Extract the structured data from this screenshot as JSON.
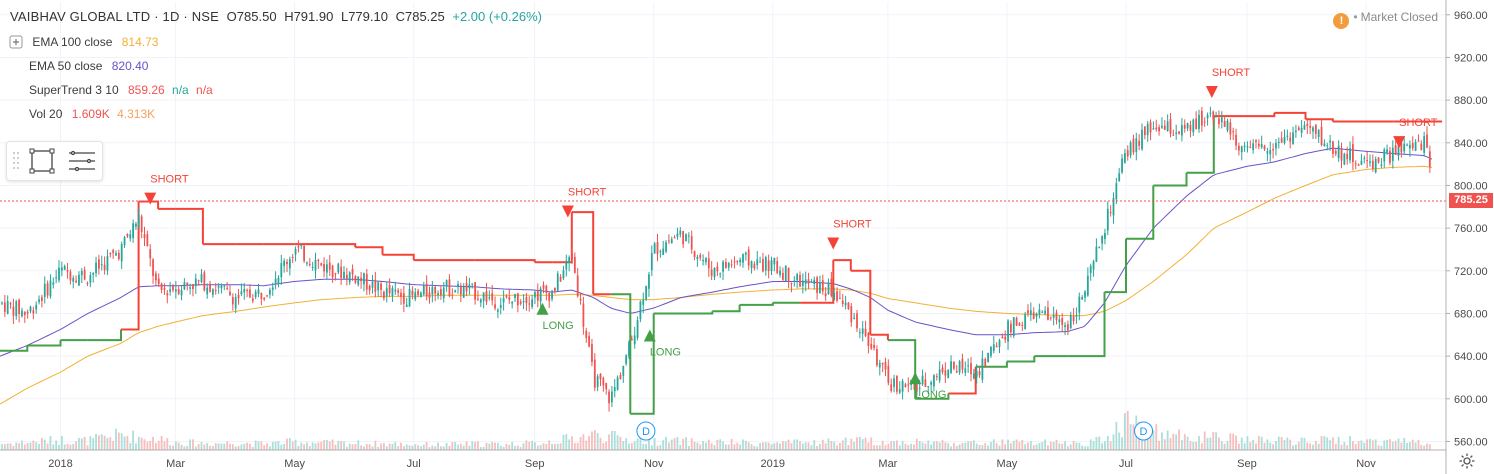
{
  "header": {
    "symbol": "VAIBHAV GLOBAL LTD · 1D · NSE",
    "open_label": "O",
    "open": "785.50",
    "high_label": "H",
    "high": "791.90",
    "low_label": "L",
    "low": "779.10",
    "close_label": "C",
    "close": "785.25",
    "change": "+2.00 (+0.26%)"
  },
  "indicators": [
    {
      "label": "EMA 100 close",
      "values": [
        "814.73"
      ],
      "color": "#f2b134"
    },
    {
      "label": "EMA 50 close",
      "values": [
        "820.40"
      ],
      "color": "#6a52c8"
    },
    {
      "label": "SuperTrend 3 10",
      "values": [
        "859.26",
        "n/a",
        "n/a"
      ],
      "colors": [
        "#ef5350",
        "#26a69a",
        "#ef5350"
      ]
    },
    {
      "label": "Vol 20",
      "values": [
        "1.609K",
        "4.313K"
      ],
      "colors": [
        "#ef5350",
        "#f4a261"
      ]
    }
  ],
  "status": {
    "icon": "!",
    "text": "Market Closed"
  },
  "last_price": "785.25",
  "colors": {
    "up": "#26a69a",
    "down": "#ef5350",
    "ema100": "#f2b134",
    "ema50": "#6a52c8",
    "st_up": "#43a047",
    "st_down": "#f44336",
    "grid": "#f0f3fa",
    "axis_text": "#4a4a4a"
  },
  "signals": [
    {
      "text": "SHORT",
      "type": "short",
      "date": "2018-02-16",
      "price": 782
    },
    {
      "text": "SHORT",
      "type": "short",
      "date": "2018-09-18",
      "price": 770
    },
    {
      "text": "LONG",
      "type": "long",
      "date": "2018-10-30",
      "price": 665
    },
    {
      "text": "SHORT",
      "type": "short",
      "date": "2019-02-01",
      "price": 740
    },
    {
      "text": "LONG",
      "type": "long",
      "date": "2019-03-15",
      "price": 625
    },
    {
      "text": "SHORT",
      "type": "short",
      "date": "2019-08-14",
      "price": 882
    },
    {
      "text": "SHORT",
      "type": "short",
      "date": "2019-11-18",
      "price": 835
    },
    {
      "text": "LONG",
      "type": "long",
      "date": "2018-09-05",
      "price": 690
    }
  ],
  "dividends": [
    {
      "label": "D",
      "date": "2018-10-28"
    },
    {
      "label": "D",
      "date": "2019-07-10"
    }
  ],
  "chart_data": {
    "type": "line",
    "title": "VAIBHAV GLOBAL LTD · 1D · NSE",
    "x_tick_labels": [
      "2018",
      "Mar",
      "May",
      "Jul",
      "Sep",
      "Nov",
      "2019",
      "Mar",
      "May",
      "Jul",
      "Sep",
      "Nov"
    ],
    "y_tick_labels": [
      "560.00",
      "600.00",
      "640.00",
      "680.00",
      "720.00",
      "760.00",
      "800.00",
      "840.00",
      "880.00",
      "920.00",
      "960.00"
    ],
    "ylim": [
      552,
      972
    ],
    "x": [
      "2017-12-01",
      "2017-12-15",
      "2018-01-01",
      "2018-01-15",
      "2018-02-01",
      "2018-02-10",
      "2018-02-20",
      "2018-03-01",
      "2018-03-15",
      "2018-04-01",
      "2018-04-15",
      "2018-05-01",
      "2018-05-15",
      "2018-06-01",
      "2018-06-15",
      "2018-07-01",
      "2018-07-15",
      "2018-08-01",
      "2018-08-15",
      "2018-09-01",
      "2018-09-10",
      "2018-09-20",
      "2018-10-01",
      "2018-10-10",
      "2018-10-20",
      "2018-11-01",
      "2018-11-15",
      "2018-12-01",
      "2018-12-15",
      "2019-01-01",
      "2019-01-15",
      "2019-02-01",
      "2019-02-10",
      "2019-02-20",
      "2019-03-01",
      "2019-03-15",
      "2019-04-01",
      "2019-04-15",
      "2019-05-01",
      "2019-05-15",
      "2019-06-01",
      "2019-06-10",
      "2019-06-20",
      "2019-07-01",
      "2019-07-15",
      "2019-08-01",
      "2019-08-15",
      "2019-09-01",
      "2019-09-15",
      "2019-10-01",
      "2019-10-15",
      "2019-11-01",
      "2019-11-15",
      "2019-12-01",
      "2019-12-10"
    ],
    "series": [
      {
        "name": "Close",
        "values": [
          690,
          680,
          720,
          715,
          740,
          770,
          700,
          705,
          710,
          695,
          700,
          740,
          725,
          715,
          700,
          695,
          705,
          700,
          690,
          698,
          700,
          735,
          620,
          600,
          650,
          740,
          755,
          720,
          730,
          725,
          710,
          700,
          680,
          650,
          615,
          610,
          630,
          625,
          665,
          680,
          670,
          700,
          760,
          830,
          855,
          850,
          870,
          830,
          840,
          855,
          835,
          820,
          830,
          840,
          785
        ]
      },
      {
        "name": "EMA 50 close",
        "values": [
          640,
          650,
          665,
          680,
          695,
          705,
          706,
          706,
          707,
          707,
          706,
          710,
          712,
          712,
          710,
          707,
          706,
          705,
          703,
          702,
          700,
          702,
          695,
          685,
          680,
          685,
          695,
          700,
          705,
          710,
          710,
          708,
          703,
          695,
          683,
          672,
          665,
          660,
          660,
          662,
          663,
          668,
          690,
          725,
          760,
          790,
          810,
          818,
          822,
          830,
          835,
          832,
          830,
          828,
          820
        ]
      },
      {
        "name": "EMA 100 close",
        "values": [
          595,
          610,
          625,
          640,
          652,
          662,
          668,
          672,
          678,
          682,
          686,
          690,
          693,
          695,
          696,
          696,
          697,
          697,
          697,
          697,
          697,
          698,
          697,
          695,
          693,
          693,
          695,
          698,
          700,
          702,
          703,
          703,
          702,
          699,
          694,
          690,
          685,
          682,
          680,
          679,
          678,
          678,
          682,
          692,
          710,
          735,
          760,
          775,
          788,
          800,
          810,
          815,
          817,
          818,
          815
        ]
      },
      {
        "name": "SuperTrend 3 10",
        "values": [
          645,
          650,
          655,
          655,
          665,
          785,
          778,
          778,
          745,
          745,
          745,
          745,
          745,
          742,
          735,
          730,
          730,
          730,
          730,
          728,
          728,
          775,
          698,
          698,
          586,
          680,
          680,
          682,
          688,
          690,
          690,
          730,
          720,
          660,
          655,
          600,
          605,
          630,
          635,
          640,
          640,
          640,
          700,
          750,
          800,
          812,
          865,
          865,
          868,
          862,
          860,
          860,
          860,
          860,
          860
        ]
      },
      {
        "name": "Vol 20",
        "values": [
          1.2,
          1.5,
          2.0,
          1.8,
          3.0,
          2.5,
          2.2,
          1.5,
          1.3,
          1.4,
          1.2,
          1.6,
          1.4,
          1.3,
          1.2,
          1.1,
          1.0,
          1.2,
          1.1,
          1.3,
          1.8,
          2.2,
          3.0,
          2.6,
          2.0,
          1.8,
          1.7,
          1.5,
          1.4,
          1.3,
          1.4,
          1.6,
          1.8,
          1.7,
          1.5,
          1.6,
          1.4,
          1.3,
          1.5,
          1.4,
          1.3,
          1.4,
          2.0,
          6.0,
          3.5,
          2.6,
          2.4,
          2.0,
          1.8,
          1.7,
          1.9,
          1.8,
          1.7,
          1.6,
          1.6
        ]
      }
    ],
    "price_line": 785.25,
    "grid": true,
    "legend": "top-left"
  }
}
